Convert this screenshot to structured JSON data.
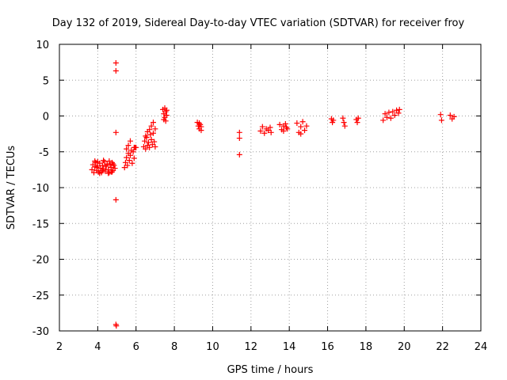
{
  "chart_data": {
    "type": "scatter",
    "title": "Day 132 of 2019, Sidereal Day-to-day VTEC variation (SDTVAR) for receiver froy",
    "xlabel": "GPS time / hours",
    "ylabel": "SDTVAR / TECUs",
    "xlim": [
      2,
      24
    ],
    "ylim": [
      -30,
      10
    ],
    "xticks": [
      2,
      4,
      6,
      8,
      10,
      12,
      14,
      16,
      18,
      20,
      22,
      24
    ],
    "yticks": [
      10,
      5,
      0,
      -5,
      -10,
      -15,
      -20,
      -25,
      -30
    ],
    "grid": true,
    "marker": "+",
    "color": "#ff0000",
    "series": [
      {
        "name": "SDTVAR",
        "points": [
          [
            3.7,
            -7.5
          ],
          [
            3.75,
            -6.8
          ],
          [
            3.8,
            -7.9
          ],
          [
            3.85,
            -7.1
          ],
          [
            3.9,
            -6.5
          ],
          [
            3.95,
            -7.6
          ],
          [
            4.0,
            -7.0
          ],
          [
            4.05,
            -7.8
          ],
          [
            4.1,
            -6.6
          ],
          [
            4.15,
            -7.3
          ],
          [
            4.2,
            -7.9
          ],
          [
            4.25,
            -6.9
          ],
          [
            4.3,
            -7.4
          ],
          [
            4.35,
            -6.4
          ],
          [
            4.4,
            -7.7
          ],
          [
            4.45,
            -7.0
          ],
          [
            4.5,
            -6.7
          ],
          [
            4.55,
            -7.5
          ],
          [
            4.6,
            -7.9
          ],
          [
            4.65,
            -6.8
          ],
          [
            4.7,
            -7.2
          ],
          [
            4.75,
            -6.5
          ],
          [
            4.8,
            -7.6
          ],
          [
            4.85,
            -6.9
          ],
          [
            4.9,
            -7.3
          ],
          [
            3.85,
            -6.3
          ],
          [
            4.1,
            -8.0
          ],
          [
            4.3,
            -6.2
          ],
          [
            4.55,
            -8.0
          ],
          [
            4.75,
            -7.8
          ],
          [
            4.0,
            -6.4
          ],
          [
            4.4,
            -7.0
          ],
          [
            4.6,
            -6.3
          ],
          [
            3.95,
            -7.2
          ],
          [
            4.25,
            -7.6
          ],
          [
            4.7,
            -7.8
          ],
          [
            4.8,
            -6.7
          ],
          [
            4.95,
            7.4
          ],
          [
            4.95,
            6.3
          ],
          [
            4.95,
            -2.3
          ],
          [
            4.95,
            -11.7
          ],
          [
            4.95,
            -29.1
          ],
          [
            4.97,
            -29.3
          ],
          [
            5.4,
            -7.2
          ],
          [
            5.45,
            -6.5
          ],
          [
            5.5,
            -5.8
          ],
          [
            5.5,
            -4.6
          ],
          [
            5.55,
            -6.9
          ],
          [
            5.6,
            -5.2
          ],
          [
            5.6,
            -4.1
          ],
          [
            5.65,
            -6.2
          ],
          [
            5.7,
            -3.5
          ],
          [
            5.7,
            -5.5
          ],
          [
            5.75,
            -4.8
          ],
          [
            5.8,
            -6.6
          ],
          [
            5.85,
            -5.0
          ],
          [
            5.9,
            -5.9
          ],
          [
            5.9,
            -4.4
          ],
          [
            5.95,
            -4.4
          ],
          [
            6.0,
            -4.4
          ],
          [
            6.4,
            -4.3
          ],
          [
            6.45,
            -3.5
          ],
          [
            6.5,
            -2.8
          ],
          [
            6.5,
            -4.6
          ],
          [
            6.55,
            -3.0
          ],
          [
            6.6,
            -2.2
          ],
          [
            6.6,
            -4.1
          ],
          [
            6.65,
            -3.7
          ],
          [
            6.7,
            -1.9
          ],
          [
            6.7,
            -4.4
          ],
          [
            6.75,
            -2.6
          ],
          [
            6.8,
            -3.3
          ],
          [
            6.8,
            -1.4
          ],
          [
            6.85,
            -4.0
          ],
          [
            6.9,
            -2.4
          ],
          [
            6.9,
            -0.9
          ],
          [
            6.95,
            -3.6
          ],
          [
            7.0,
            -1.8
          ],
          [
            7.0,
            -4.3
          ],
          [
            7.4,
            0.9
          ],
          [
            7.45,
            0.3
          ],
          [
            7.45,
            -0.5
          ],
          [
            7.5,
            1.1
          ],
          [
            7.5,
            -0.2
          ],
          [
            7.55,
            0.6
          ],
          [
            7.55,
            -0.7
          ],
          [
            7.6,
            0.1
          ],
          [
            7.6,
            0.8
          ],
          [
            9.2,
            -0.9
          ],
          [
            9.25,
            -1.4
          ],
          [
            9.3,
            -1.0
          ],
          [
            9.3,
            -1.8
          ],
          [
            9.35,
            -1.2
          ],
          [
            9.4,
            -2.0
          ],
          [
            9.4,
            -1.5
          ],
          [
            11.4,
            -2.3
          ],
          [
            11.4,
            -3.1
          ],
          [
            11.4,
            -5.4
          ],
          [
            12.5,
            -2.1
          ],
          [
            12.6,
            -1.5
          ],
          [
            12.7,
            -2.4
          ],
          [
            12.8,
            -1.8
          ],
          [
            12.9,
            -2.0
          ],
          [
            13.0,
            -1.6
          ],
          [
            13.05,
            -2.3
          ],
          [
            13.5,
            -1.2
          ],
          [
            13.6,
            -1.9
          ],
          [
            13.7,
            -1.4
          ],
          [
            13.8,
            -1.1
          ],
          [
            13.9,
            -1.8
          ],
          [
            13.7,
            -2.1
          ],
          [
            13.85,
            -1.6
          ],
          [
            14.4,
            -1.0
          ],
          [
            14.5,
            -2.3
          ],
          [
            14.6,
            -1.5
          ],
          [
            14.7,
            -0.8
          ],
          [
            14.8,
            -2.0
          ],
          [
            14.9,
            -1.4
          ],
          [
            14.6,
            -2.5
          ],
          [
            16.2,
            -0.4
          ],
          [
            16.25,
            -0.9
          ],
          [
            16.3,
            -0.6
          ],
          [
            16.8,
            -0.3
          ],
          [
            16.85,
            -0.9
          ],
          [
            16.9,
            -1.4
          ],
          [
            17.5,
            -0.5
          ],
          [
            17.55,
            -0.9
          ],
          [
            17.6,
            -0.3
          ],
          [
            18.9,
            -0.6
          ],
          [
            19.0,
            0.3
          ],
          [
            19.1,
            -0.2
          ],
          [
            19.2,
            0.5
          ],
          [
            19.3,
            -0.3
          ],
          [
            19.4,
            0.6
          ],
          [
            19.5,
            0.1
          ],
          [
            19.6,
            0.8
          ],
          [
            19.7,
            0.4
          ],
          [
            19.75,
            0.9
          ],
          [
            21.9,
            0.2
          ],
          [
            21.95,
            -0.6
          ],
          [
            22.4,
            0.1
          ],
          [
            22.5,
            -0.4
          ],
          [
            22.6,
            -0.1
          ]
        ]
      }
    ]
  }
}
